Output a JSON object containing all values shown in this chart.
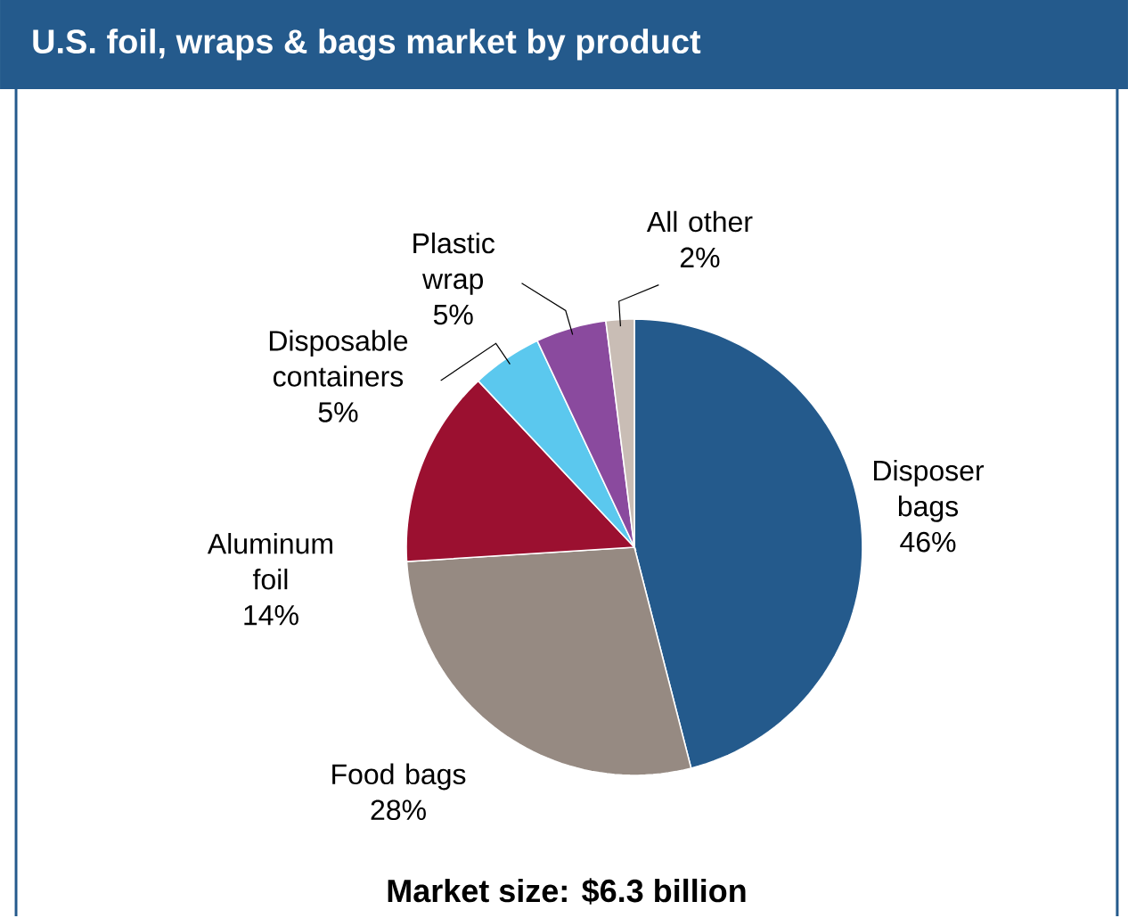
{
  "chart_data": {
    "type": "pie",
    "title": "U.S. foil, wraps & bags market by product",
    "categories": [
      "Disposer bags",
      "Food bags",
      "Aluminum foil",
      "Disposable containers",
      "Plastic wrap",
      "All other"
    ],
    "values": [
      46,
      28,
      14,
      5,
      5,
      2
    ],
    "value_labels": [
      "46%",
      "28%",
      "14%",
      "5%",
      "5%",
      "2%"
    ],
    "colors": [
      "#245a8c",
      "#968a82",
      "#9b1030",
      "#5bc8ee",
      "#8a4a9e",
      "#c9bdb5"
    ],
    "annotations": [
      "Market size: $6.3 billion"
    ]
  }
}
